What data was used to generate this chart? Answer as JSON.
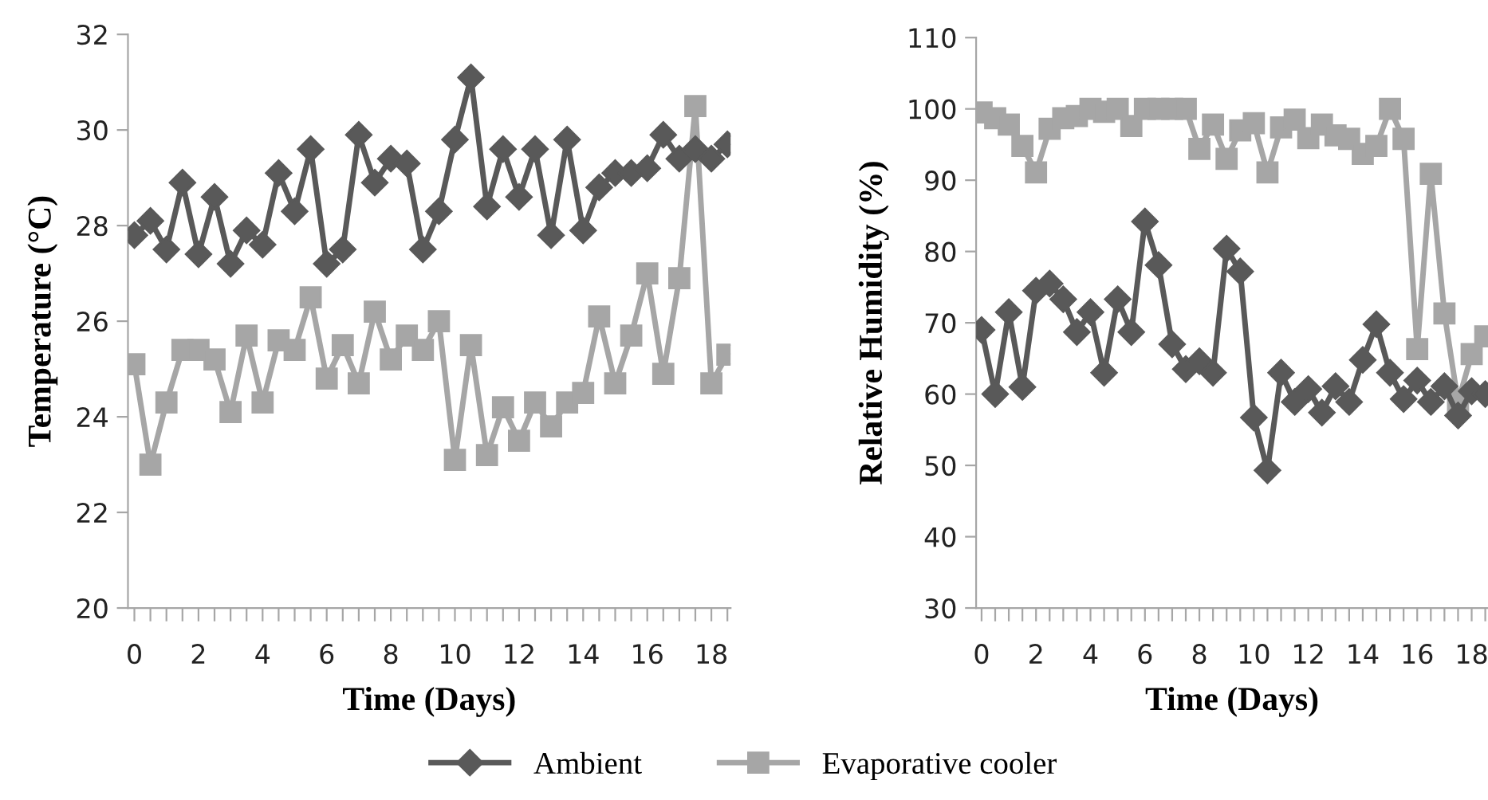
{
  "chart_data": [
    {
      "type": "line",
      "xlabel": "Time (Days)",
      "ylabel": "Temperature (°C)",
      "legend": "bottom",
      "grid": false,
      "x": [
        0,
        0.5,
        1,
        1.5,
        2,
        2.5,
        3,
        3.5,
        4,
        4.5,
        5,
        5.5,
        6,
        6.5,
        7,
        7.5,
        8,
        8.5,
        9,
        9.5,
        10,
        10.5,
        11,
        11.5,
        12,
        12.5,
        13,
        13.5,
        14,
        14.5,
        15,
        15.5,
        16,
        16.5,
        17,
        17.5,
        18,
        18.5
      ],
      "xlim": [
        -0.2,
        18.6
      ],
      "ylim": [
        20,
        32
      ],
      "yticks": [
        20,
        22,
        24,
        26,
        28,
        30,
        32
      ],
      "xticks": [
        0,
        {
          "value": 0.5,
          "label": null
        },
        2,
        {
          "value": 1,
          "label": null
        },
        {
          "value": 1.5,
          "label": null
        },
        {
          "value": 2.5,
          "label": null
        },
        {
          "value": 3,
          "label": null
        },
        {
          "value": 3.5,
          "label": null
        },
        4,
        {
          "value": 4.5,
          "label": null
        },
        {
          "value": 5,
          "label": null
        },
        {
          "value": 5.5,
          "label": null
        },
        6,
        {
          "value": 6.5,
          "label": null
        },
        {
          "value": 7,
          "label": null
        },
        {
          "value": 7.5,
          "label": null
        },
        8,
        {
          "value": 8.5,
          "label": null
        },
        {
          "value": 9,
          "label": null
        },
        {
          "value": 9.5,
          "label": null
        },
        10,
        {
          "value": 10.5,
          "label": null
        },
        {
          "value": 11,
          "label": null
        },
        {
          "value": 11.5,
          "label": null
        },
        12,
        {
          "value": 12.5,
          "label": null
        },
        {
          "value": 13,
          "label": null
        },
        {
          "value": 13.5,
          "label": null
        },
        14,
        {
          "value": 14.5,
          "label": null
        },
        {
          "value": 15,
          "label": null
        },
        {
          "value": 15.5,
          "label": null
        },
        16,
        {
          "value": 16.5,
          "label": null
        },
        {
          "value": 17,
          "label": null
        },
        {
          "value": 17.5,
          "label": null
        },
        18,
        {
          "value": 18.5,
          "label": null
        }
      ],
      "series": [
        {
          "name": "Ambient",
          "color": "#595959",
          "marker": "diamond",
          "values": [
            27.8,
            28.1,
            27.5,
            28.9,
            27.4,
            28.6,
            27.2,
            27.9,
            27.6,
            29.1,
            28.3,
            29.6,
            27.2,
            27.5,
            29.9,
            28.9,
            29.4,
            29.3,
            27.5,
            28.3,
            29.8,
            31.1,
            28.4,
            29.6,
            28.6,
            29.6,
            27.8,
            29.8,
            27.9,
            28.8,
            29.1,
            29.1,
            29.2,
            29.9,
            29.4,
            29.6,
            29.4,
            29.7
          ]
        },
        {
          "name": "Evaporative cooler",
          "color": "#a6a6a6",
          "marker": "square",
          "values": [
            25.1,
            23.0,
            24.3,
            25.4,
            25.4,
            25.2,
            24.1,
            25.7,
            24.3,
            25.6,
            25.4,
            26.5,
            24.8,
            25.5,
            24.7,
            26.2,
            25.2,
            25.7,
            25.4,
            26.0,
            23.1,
            25.5,
            23.2,
            24.2,
            23.5,
            24.3,
            23.8,
            24.3,
            24.5,
            26.1,
            24.7,
            25.7,
            27.0,
            24.9,
            26.9,
            30.5,
            24.7,
            25.3
          ]
        }
      ]
    },
    {
      "type": "line",
      "xlabel": "Time (Days)",
      "ylabel": "Relative Humidity (%)",
      "legend": "bottom",
      "grid": false,
      "x": [
        0,
        0.5,
        1,
        1.5,
        2,
        2.5,
        3,
        3.5,
        4,
        4.5,
        5,
        5.5,
        6,
        6.5,
        7,
        7.5,
        8,
        8.5,
        9,
        9.5,
        10,
        10.5,
        11,
        11.5,
        12,
        12.5,
        13,
        13.5,
        14,
        14.5,
        15,
        15.5,
        16,
        16.5,
        17,
        17.5,
        18,
        18.5
      ],
      "xlim": [
        -0.2,
        18.6
      ],
      "ylim": [
        30,
        110
      ],
      "yticks": [
        30,
        40,
        50,
        60,
        70,
        80,
        90,
        100,
        110
      ],
      "xticks": [
        0,
        {
          "value": 0.5,
          "label": null
        },
        2,
        {
          "value": 1,
          "label": null
        },
        {
          "value": 1.5,
          "label": null
        },
        {
          "value": 2.5,
          "label": null
        },
        {
          "value": 3,
          "label": null
        },
        {
          "value": 3.5,
          "label": null
        },
        4,
        {
          "value": 4.5,
          "label": null
        },
        {
          "value": 5,
          "label": null
        },
        {
          "value": 5.5,
          "label": null
        },
        6,
        {
          "value": 6.5,
          "label": null
        },
        {
          "value": 7,
          "label": null
        },
        {
          "value": 7.5,
          "label": null
        },
        8,
        {
          "value": 8.5,
          "label": null
        },
        {
          "value": 9,
          "label": null
        },
        {
          "value": 9.5,
          "label": null
        },
        10,
        {
          "value": 10.5,
          "label": null
        },
        {
          "value": 11,
          "label": null
        },
        {
          "value": 11.5,
          "label": null
        },
        12,
        {
          "value": 12.5,
          "label": null
        },
        {
          "value": 13,
          "label": null
        },
        {
          "value": 13.5,
          "label": null
        },
        14,
        {
          "value": 14.5,
          "label": null
        },
        {
          "value": 15,
          "label": null
        },
        {
          "value": 15.5,
          "label": null
        },
        16,
        {
          "value": 16.5,
          "label": null
        },
        {
          "value": 17,
          "label": null
        },
        {
          "value": 17.5,
          "label": null
        },
        18,
        {
          "value": 18.5,
          "label": null
        }
      ],
      "series": [
        {
          "name": "Ambient",
          "color": "#595959",
          "marker": "diamond",
          "values": [
            69,
            60,
            71.5,
            61,
            74.5,
            75.5,
            73.3,
            68.7,
            71.5,
            63,
            73.3,
            68.7,
            84.2,
            78.1,
            67,
            63.5,
            64.6,
            63,
            80.4,
            77.2,
            56.7,
            49.3,
            63,
            58.9,
            60.7,
            57.4,
            61.1,
            58.9,
            64.8,
            69.8,
            63,
            59.3,
            61.9,
            58.9,
            61.1,
            57,
            60.4,
            60
          ]
        },
        {
          "name": "Evaporative cooler",
          "color": "#a6a6a6",
          "marker": "square",
          "values": [
            99.5,
            98.7,
            97.8,
            94.8,
            91.1,
            97.2,
            98.7,
            99,
            100,
            99.6,
            100,
            97.6,
            100,
            100,
            100,
            100,
            94.4,
            97.8,
            93,
            97,
            98,
            91.1,
            97.4,
            98.5,
            95.9,
            97.8,
            96.3,
            95.8,
            93.7,
            94.8,
            100,
            95.8,
            66.3,
            90.9,
            71.3,
            58.9,
            65.6,
            68.1
          ]
        }
      ]
    }
  ]
}
